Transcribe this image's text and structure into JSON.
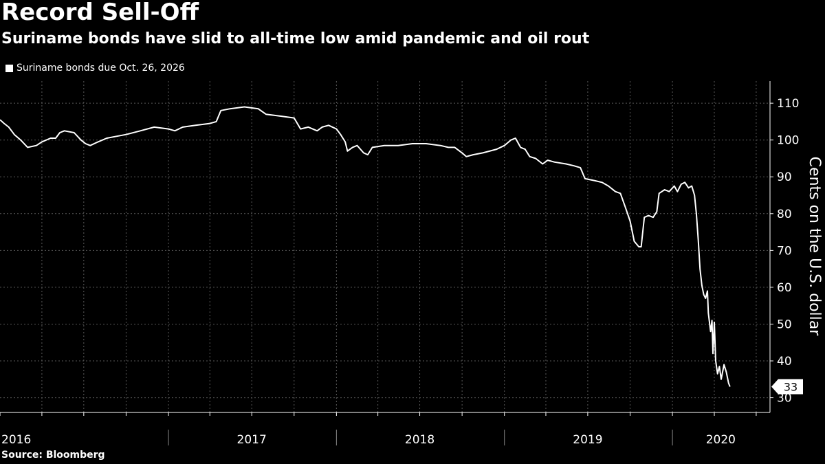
{
  "chart_data": {
    "type": "line",
    "title": "Record Sell-Off",
    "subtitle": "Suriname bonds have slid to all-time low amid pandemic and oil rout",
    "source": "Source: Bloomberg",
    "ylabel": "Cents on the U.S. dollar",
    "ylim": [
      26,
      116
    ],
    "yticks": [
      30,
      40,
      50,
      60,
      70,
      80,
      90,
      100,
      110
    ],
    "xlim": [
      "2016-01-01",
      "2020-07-31"
    ],
    "x_year_labels": [
      {
        "label": "2016",
        "position": "2016-01-01"
      },
      {
        "label": "2017",
        "position": "2017-07-01"
      },
      {
        "label": "2018",
        "position": "2018-07-01"
      },
      {
        "label": "2019",
        "position": "2019-07-01"
      },
      {
        "label": "2020",
        "position": "2020-04-15"
      }
    ],
    "x_year_boundaries": [
      "2017-01-01",
      "2018-01-01",
      "2019-01-01",
      "2020-01-01"
    ],
    "grid": true,
    "legend": "top-left",
    "last_value_label": "33",
    "colors": {
      "background": "#000000",
      "line": "#ffffff",
      "grid": "#5a5a5a"
    },
    "series": [
      {
        "name": "Suriname bonds due Oct. 26, 2026",
        "points": [
          [
            "2016-01-01",
            105.5
          ],
          [
            "2016-01-10",
            104.5
          ],
          [
            "2016-01-20",
            103.5
          ],
          [
            "2016-02-01",
            101.5
          ],
          [
            "2016-02-15",
            100.0
          ],
          [
            "2016-03-01",
            98.0
          ],
          [
            "2016-03-20",
            98.5
          ],
          [
            "2016-04-01",
            99.5
          ],
          [
            "2016-04-20",
            100.5
          ],
          [
            "2016-05-01",
            100.5
          ],
          [
            "2016-05-10",
            102.0
          ],
          [
            "2016-05-20",
            102.5
          ],
          [
            "2016-06-10",
            102.0
          ],
          [
            "2016-06-25",
            100.0
          ],
          [
            "2016-07-05",
            99.0
          ],
          [
            "2016-07-15",
            98.5
          ],
          [
            "2016-08-01",
            99.5
          ],
          [
            "2016-08-20",
            100.5
          ],
          [
            "2016-09-10",
            101.0
          ],
          [
            "2016-10-01",
            101.5
          ],
          [
            "2016-11-01",
            102.5
          ],
          [
            "2016-12-01",
            103.5
          ],
          [
            "2017-01-01",
            103.0
          ],
          [
            "2017-01-15",
            102.5
          ],
          [
            "2017-02-01",
            103.5
          ],
          [
            "2017-03-01",
            104.0
          ],
          [
            "2017-04-01",
            104.5
          ],
          [
            "2017-04-15",
            105.0
          ],
          [
            "2017-04-25",
            108.0
          ],
          [
            "2017-05-15",
            108.5
          ],
          [
            "2017-06-15",
            109.0
          ],
          [
            "2017-07-15",
            108.5
          ],
          [
            "2017-08-01",
            107.0
          ],
          [
            "2017-09-01",
            106.5
          ],
          [
            "2017-10-01",
            106.0
          ],
          [
            "2017-10-15",
            103.0
          ],
          [
            "2017-11-01",
            103.5
          ],
          [
            "2017-11-20",
            102.5
          ],
          [
            "2017-12-01",
            103.5
          ],
          [
            "2017-12-15",
            104.0
          ],
          [
            "2018-01-01",
            103.0
          ],
          [
            "2018-01-10",
            101.5
          ],
          [
            "2018-01-20",
            99.5
          ],
          [
            "2018-01-25",
            97.0
          ],
          [
            "2018-02-05",
            98.0
          ],
          [
            "2018-02-15",
            98.5
          ],
          [
            "2018-03-01",
            96.5
          ],
          [
            "2018-03-10",
            96.0
          ],
          [
            "2018-03-20",
            98.0
          ],
          [
            "2018-04-15",
            98.5
          ],
          [
            "2018-05-15",
            98.5
          ],
          [
            "2018-06-15",
            99.0
          ],
          [
            "2018-07-15",
            99.0
          ],
          [
            "2018-08-15",
            98.5
          ],
          [
            "2018-09-01",
            98.0
          ],
          [
            "2018-09-15",
            98.0
          ],
          [
            "2018-10-01",
            96.5
          ],
          [
            "2018-10-10",
            95.5
          ],
          [
            "2018-10-25",
            96.0
          ],
          [
            "2018-11-15",
            96.5
          ],
          [
            "2018-12-15",
            97.5
          ],
          [
            "2019-01-01",
            98.5
          ],
          [
            "2019-01-15",
            100.0
          ],
          [
            "2019-01-25",
            100.5
          ],
          [
            "2019-02-05",
            98.0
          ],
          [
            "2019-02-15",
            97.5
          ],
          [
            "2019-02-25",
            95.5
          ],
          [
            "2019-03-10",
            95.0
          ],
          [
            "2019-03-25",
            93.5
          ],
          [
            "2019-04-05",
            94.5
          ],
          [
            "2019-04-20",
            94.0
          ],
          [
            "2019-05-15",
            93.5
          ],
          [
            "2019-06-01",
            93.0
          ],
          [
            "2019-06-15",
            92.5
          ],
          [
            "2019-06-25",
            89.5
          ],
          [
            "2019-07-15",
            89.0
          ],
          [
            "2019-08-01",
            88.5
          ],
          [
            "2019-08-15",
            87.5
          ],
          [
            "2019-08-30",
            86.0
          ],
          [
            "2019-09-10",
            85.5
          ],
          [
            "2019-09-20",
            82.0
          ],
          [
            "2019-10-01",
            78.0
          ],
          [
            "2019-10-10",
            72.5
          ],
          [
            "2019-10-20",
            71.0
          ],
          [
            "2019-10-25",
            71.0
          ],
          [
            "2019-11-01",
            79.0
          ],
          [
            "2019-11-10",
            79.5
          ],
          [
            "2019-11-20",
            79.0
          ],
          [
            "2019-11-28",
            80.5
          ],
          [
            "2019-12-03",
            85.5
          ],
          [
            "2019-12-15",
            86.5
          ],
          [
            "2019-12-25",
            86.0
          ],
          [
            "2020-01-05",
            87.5
          ],
          [
            "2020-01-12",
            86.0
          ],
          [
            "2020-01-20",
            88.0
          ],
          [
            "2020-01-28",
            88.5
          ],
          [
            "2020-02-05",
            87.0
          ],
          [
            "2020-02-12",
            87.5
          ],
          [
            "2020-02-18",
            85.0
          ],
          [
            "2020-02-22",
            80.0
          ],
          [
            "2020-02-26",
            73.0
          ],
          [
            "2020-03-01",
            65.0
          ],
          [
            "2020-03-05",
            60.5
          ],
          [
            "2020-03-09",
            58.0
          ],
          [
            "2020-03-13",
            57.0
          ],
          [
            "2020-03-17",
            59.0
          ],
          [
            "2020-03-19",
            53.0
          ],
          [
            "2020-03-24",
            48.0
          ],
          [
            "2020-03-27",
            51.0
          ],
          [
            "2020-03-29",
            42.0
          ],
          [
            "2020-04-01",
            50.5
          ],
          [
            "2020-04-04",
            40.0
          ],
          [
            "2020-04-08",
            36.5
          ],
          [
            "2020-04-12",
            38.5
          ],
          [
            "2020-04-16",
            35.0
          ],
          [
            "2020-04-22",
            39.0
          ],
          [
            "2020-04-27",
            37.0
          ],
          [
            "2020-05-02",
            34.0
          ],
          [
            "2020-05-05",
            33.0
          ]
        ]
      }
    ]
  }
}
